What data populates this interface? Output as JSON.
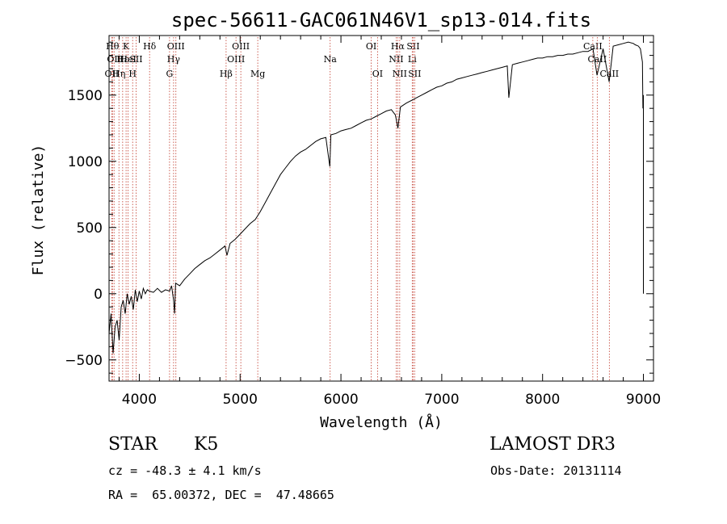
{
  "chart_data": {
    "type": "line",
    "title": "spec-56611-GAC061N46V1_sp13-014.fits",
    "xlabel": "Wavelength (Å)",
    "ylabel": "Flux (relative)",
    "xlim": [
      3700,
      9100
    ],
    "ylim": [
      -660,
      1950
    ],
    "xticks": [
      4000,
      5000,
      6000,
      7000,
      8000,
      9000
    ],
    "xtick_labels": [
      "4000",
      "5000",
      "6000",
      "7000",
      "8000",
      "9000"
    ],
    "yticks": [
      -500,
      0,
      500,
      1000,
      1500
    ],
    "ytick_labels": [
      "−500",
      "0",
      "500",
      "1000",
      "1500"
    ],
    "series": [
      {
        "name": "spectrum",
        "x": [
          3700,
          3720,
          3740,
          3760,
          3780,
          3800,
          3820,
          3840,
          3860,
          3880,
          3900,
          3920,
          3940,
          3960,
          3980,
          4000,
          4020,
          4040,
          4060,
          4080,
          4100,
          4140,
          4180,
          4220,
          4260,
          4300,
          4320,
          4340,
          4350,
          4360,
          4400,
          4450,
          4500,
          4550,
          4600,
          4650,
          4700,
          4750,
          4800,
          4850,
          4870,
          4900,
          4950,
          5000,
          5050,
          5100,
          5150,
          5200,
          5250,
          5300,
          5350,
          5400,
          5450,
          5500,
          5550,
          5600,
          5650,
          5700,
          5750,
          5800,
          5850,
          5890,
          5900,
          5950,
          6000,
          6050,
          6100,
          6150,
          6200,
          6250,
          6300,
          6350,
          6400,
          6450,
          6500,
          6540,
          6565,
          6590,
          6650,
          6700,
          6750,
          6800,
          6850,
          6900,
          6950,
          7000,
          7050,
          7100,
          7150,
          7200,
          7250,
          7300,
          7350,
          7400,
          7450,
          7500,
          7550,
          7600,
          7650,
          7665,
          7700,
          7750,
          7800,
          7850,
          7900,
          7950,
          8000,
          8050,
          8100,
          8150,
          8200,
          8250,
          8300,
          8350,
          8400,
          8450,
          8500,
          8540,
          8600,
          8660,
          8700,
          8750,
          8800,
          8850,
          8900,
          8920,
          8950,
          8970,
          8990,
          8995,
          9000,
          9000
        ],
        "y": [
          -300,
          -150,
          -450,
          -250,
          -200,
          -350,
          -100,
          -50,
          -150,
          0,
          -80,
          -20,
          -120,
          30,
          -60,
          20,
          -40,
          40,
          0,
          30,
          20,
          10,
          40,
          10,
          30,
          20,
          60,
          -50,
          -150,
          80,
          60,
          110,
          150,
          190,
          220,
          250,
          270,
          300,
          330,
          360,
          290,
          380,
          410,
          450,
          490,
          530,
          560,
          620,
          690,
          760,
          830,
          900,
          950,
          1000,
          1040,
          1070,
          1090,
          1120,
          1150,
          1170,
          1180,
          960,
          1200,
          1210,
          1230,
          1240,
          1250,
          1270,
          1290,
          1310,
          1320,
          1340,
          1360,
          1380,
          1390,
          1350,
          1250,
          1410,
          1440,
          1460,
          1480,
          1500,
          1520,
          1540,
          1560,
          1570,
          1590,
          1600,
          1620,
          1630,
          1640,
          1650,
          1660,
          1670,
          1680,
          1690,
          1700,
          1710,
          1720,
          1480,
          1730,
          1740,
          1750,
          1760,
          1770,
          1780,
          1780,
          1790,
          1790,
          1800,
          1800,
          1810,
          1810,
          1820,
          1830,
          1830,
          1850,
          1650,
          1850,
          1600,
          1870,
          1880,
          1890,
          1900,
          1890,
          1880,
          1870,
          1850,
          1750,
          1400,
          1500,
          0
        ]
      }
    ],
    "lines": [
      {
        "x": 3727,
        "label": "OII",
        "row": 3
      },
      {
        "x": 3734,
        "label": "Hθ",
        "row": 1
      },
      {
        "x": 3750,
        "label": "OII",
        "row": 2
      },
      {
        "x": 3798,
        "label": "Hη",
        "row": 3
      },
      {
        "x": 3835,
        "label": "Hε",
        "row": 2
      },
      {
        "x": 3869,
        "label": "K",
        "row": 1
      },
      {
        "x": 3889,
        "label": "HeI",
        "row": 2
      },
      {
        "x": 3934,
        "label": "H",
        "row": 3
      },
      {
        "x": 3968,
        "label": "SII",
        "row": 2
      },
      {
        "x": 4102,
        "label": "Hδ",
        "row": 1
      },
      {
        "x": 4300,
        "label": "G",
        "row": 3
      },
      {
        "x": 4340,
        "label": "Hγ",
        "row": 2
      },
      {
        "x": 4363,
        "label": "OIII",
        "row": 1
      },
      {
        "x": 4861,
        "label": "Hβ",
        "row": 3
      },
      {
        "x": 4959,
        "label": "OIII",
        "row": 2
      },
      {
        "x": 5007,
        "label": "OIII",
        "row": 1
      },
      {
        "x": 5175,
        "label": "Mg",
        "row": 3
      },
      {
        "x": 5893,
        "label": "Na",
        "row": 2
      },
      {
        "x": 6300,
        "label": "OI",
        "row": 1
      },
      {
        "x": 6363,
        "label": "OI",
        "row": 3
      },
      {
        "x": 6548,
        "label": "NII",
        "row": 2
      },
      {
        "x": 6563,
        "label": "Hα",
        "row": 1
      },
      {
        "x": 6583,
        "label": "NII",
        "row": 3
      },
      {
        "x": 6707,
        "label": "Li",
        "row": 2
      },
      {
        "x": 6716,
        "label": "SII",
        "row": 1
      },
      {
        "x": 6731,
        "label": "SII",
        "row": 3
      },
      {
        "x": 8498,
        "label": "CaII",
        "row": 1
      },
      {
        "x": 8542,
        "label": "CaII",
        "row": 2
      },
      {
        "x": 8662,
        "label": "CaII",
        "row": 3
      }
    ]
  },
  "info": {
    "class_label": "STAR",
    "subclass": "K5",
    "survey": "LAMOST DR3",
    "redshift": "cz = -48.3 ± 4.1 km/s",
    "obs_date": "Obs-Date: 20131114",
    "coords": "RA =  65.00372, DEC =  47.48665"
  }
}
